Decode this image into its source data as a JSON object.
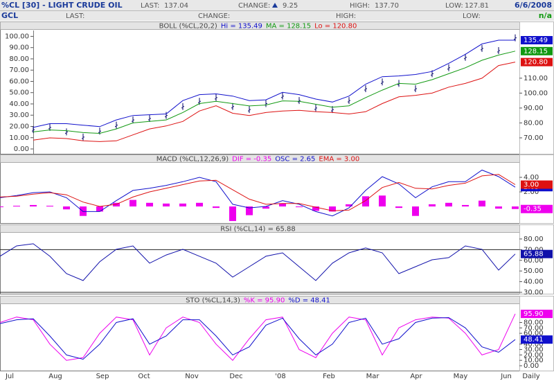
{
  "header": {
    "symbol": "%CL [30] - LIGHT CRUDE OIL",
    "last_label": "LAST:",
    "last": "137.04",
    "change_label": "CHANGE:",
    "change": "9.25",
    "high_label": "HIGH:",
    "high": "137.70",
    "low_label": "LOW:",
    "low": "127.81",
    "date": "6/6/2008",
    "sub_symbol": "GCL",
    "sub_last_label": "LAST:",
    "sub_change_label": "CHANGE:",
    "sub_high_label": "HIGH:",
    "sub_low_label": "LOW:",
    "sub_status": "n/a"
  },
  "x_axis": {
    "labels": [
      "Jul",
      "Aug",
      "Sep",
      "Oct",
      "Nov",
      "Dec",
      "'08",
      "Feb",
      "Mar",
      "Apr",
      "May",
      "Jun",
      "Daily"
    ]
  },
  "chart_data": [
    {
      "type": "line",
      "title": "BOLL (%CL,20,2)",
      "ylim": [
        -4.3,
        105.2
      ],
      "yticks": [
        {
          "value": 0,
          "label": "0.00"
        },
        {
          "value": 10,
          "label": "10.00"
        },
        {
          "value": 20,
          "label": "20.00"
        },
        {
          "value": 30,
          "label": "30.00"
        },
        {
          "value": 40,
          "label": "40.00"
        },
        {
          "value": 50,
          "label": "50.00"
        },
        {
          "value": 60,
          "label": "60.00"
        },
        {
          "value": 70,
          "label": "70.00"
        },
        {
          "value": 80,
          "label": "80.00"
        },
        {
          "value": 90,
          "label": "90.00"
        },
        {
          "value": 100,
          "label": "100.00"
        }
      ],
      "y2lim": [
        59.3,
        142
      ],
      "y2ticks": [
        {
          "value": 70,
          "label": "70.00"
        },
        {
          "value": 80,
          "label": "80.00"
        },
        {
          "value": 90,
          "label": "90.00"
        },
        {
          "value": 100,
          "label": "100.00"
        },
        {
          "value": 110,
          "label": "110.00"
        }
      ],
      "series": [
        {
          "name": "Price",
          "style": "price",
          "axis": "y2",
          "color": "#000066",
          "values": [
            null,
            null,
            75.5,
            77,
            74,
            70.5,
            74.5,
            78.5,
            82,
            83,
            85,
            91,
            94.5,
            97,
            91,
            89,
            93,
            98,
            95,
            90,
            89,
            95,
            103,
            107.5,
            106.5,
            103,
            113,
            117,
            124,
            130,
            128.5,
            137.04
          ]
        },
        {
          "name": "Hi",
          "legend": "Hi = 135.49",
          "last_label": "135.49",
          "style": "line",
          "axis": "y2",
          "color": "#1010cc",
          "values": [
            null,
            null,
            77,
            79.5,
            79.5,
            78.5,
            77.5,
            82,
            85,
            85.5,
            86,
            95,
            99,
            99.5,
            98,
            95,
            95.5,
            100.5,
            99,
            96,
            94,
            98,
            106,
            111,
            111.5,
            112.5,
            114.5,
            120,
            126,
            133,
            135.5,
            135.49
          ]
        },
        {
          "name": "MA",
          "legend": "MA = 128.15",
          "last_label": "128.15",
          "style": "line",
          "axis": "y2",
          "color": "#119911",
          "values": [
            null,
            null,
            74,
            75.3,
            74.8,
            73.5,
            73,
            76,
            80,
            81,
            82,
            87,
            93,
            94.5,
            93,
            91.4,
            92,
            94.8,
            94.5,
            92.5,
            90.5,
            91.5,
            97,
            102,
            106.5,
            106,
            109,
            113,
            117,
            122,
            125.5,
            128.15
          ]
        },
        {
          "name": "Lo",
          "legend": "Lo = 120.80",
          "last_label": "120.80",
          "style": "line",
          "axis": "y2",
          "color": "#dd1111",
          "values": [
            null,
            null,
            68.5,
            70,
            69.5,
            68,
            67.5,
            68,
            72,
            76,
            78,
            81,
            88,
            91.5,
            86.5,
            85,
            87,
            88,
            88.5,
            87.5,
            87,
            86,
            87.5,
            93,
            97.5,
            98.5,
            100,
            104,
            106.5,
            110,
            118.5,
            120.8
          ]
        }
      ]
    },
    {
      "type": "line",
      "title": "MACD (%CL,12,26,9)",
      "ylim": [
        -2.28,
        6.0
      ],
      "yticks": [
        {
          "value": 2,
          "label": "2.00"
        },
        {
          "value": 4,
          "label": "4.00"
        }
      ],
      "series": [
        {
          "name": "DIF",
          "legend": "DIF = -0.35",
          "last_label": "-0.35",
          "style": "bars",
          "color": "#ee00ee",
          "values": [
            -0.1,
            0.1,
            0.2,
            0.1,
            -0.4,
            -1.3,
            -0.7,
            0.5,
            0.9,
            0.5,
            0.4,
            0.4,
            0.5,
            -0.2,
            -2.0,
            -1.2,
            -0.3,
            0.4,
            -0.1,
            -0.6,
            -0.7,
            0.3,
            1.4,
            1.5,
            -0.2,
            -1.3,
            0.3,
            0.5,
            0.2,
            0.8,
            -0.3,
            -0.35
          ]
        },
        {
          "name": "OSC",
          "legend": "OSC = 2.65",
          "last_label": "2.65",
          "style": "line",
          "color": "#1010cc",
          "values": [
            1.2,
            1.5,
            1.9,
            2.0,
            1.2,
            -0.7,
            -0.7,
            0.8,
            2.2,
            2.5,
            2.9,
            3.4,
            4.0,
            3.4,
            0.3,
            -0.2,
            0,
            0.8,
            0.3,
            -0.7,
            -1.3,
            -0.2,
            2.2,
            4.1,
            3.1,
            1.2,
            2.7,
            3.4,
            3.4,
            5.0,
            4.1,
            2.65
          ]
        },
        {
          "name": "EMA",
          "legend": "EMA = 3.00",
          "last_label": "3.00",
          "style": "line",
          "color": "#dd1111",
          "values": [
            1.3,
            1.4,
            1.7,
            1.9,
            1.6,
            0.6,
            0,
            0.3,
            1.3,
            2.0,
            2.5,
            3.0,
            3.5,
            3.6,
            2.3,
            1.0,
            0.3,
            0.4,
            0.4,
            -0.1,
            -0.6,
            -0.5,
            0.8,
            2.6,
            3.3,
            2.5,
            2.4,
            2.9,
            3.2,
            4.2,
            4.4,
            3.0
          ]
        }
      ]
    },
    {
      "type": "line",
      "title": "RSI (%CL,14) = 65.88",
      "ylim": [
        28.7,
        85.8
      ],
      "yticks": [
        {
          "value": 30,
          "label": "30.00"
        },
        {
          "value": 40,
          "label": "40.00"
        },
        {
          "value": 50,
          "label": "50.00"
        },
        {
          "value": 60,
          "label": "60.00"
        },
        {
          "value": 70,
          "label": "70.00"
        },
        {
          "value": 80,
          "label": "80.00"
        }
      ],
      "hlines": [
        70,
        30
      ],
      "series": [
        {
          "name": "RSI",
          "last_label": "65.88",
          "style": "line",
          "color": "#1010aa",
          "values": [
            63.8,
            73.5,
            75.5,
            63.8,
            47.5,
            41,
            58.6,
            70.3,
            73.5,
            57.3,
            65,
            70.3,
            63.8,
            57.3,
            44.3,
            54,
            63.8,
            67,
            54,
            41,
            57.3,
            67,
            71.6,
            67,
            47.5,
            54,
            60.5,
            62.5,
            73.5,
            70.3,
            50.8,
            65.88
          ]
        }
      ]
    },
    {
      "type": "line",
      "title": "STO (%CL,14,3)",
      "ylim": [
        -9,
        114
      ],
      "yticks": [
        {
          "value": 0,
          "label": "0.00"
        },
        {
          "value": 10,
          "label": "10.00"
        },
        {
          "value": 20,
          "label": "20.00"
        },
        {
          "value": 30,
          "label": "30.00"
        },
        {
          "value": 40,
          "label": "40.00"
        },
        {
          "value": 60,
          "label": "60.00"
        },
        {
          "value": 70,
          "label": "70.00"
        },
        {
          "value": 80,
          "label": "80.00"
        }
      ],
      "series": [
        {
          "name": "%K",
          "legend": "%K = 95.90",
          "last_label": "95.90",
          "style": "line",
          "color": "#ee00ee",
          "values": [
            80,
            90,
            85,
            40,
            10,
            15,
            60,
            90,
            85,
            20,
            70,
            90,
            80,
            40,
            10,
            50,
            85,
            90,
            30,
            15,
            60,
            90,
            85,
            20,
            70,
            85,
            90,
            88,
            60,
            20,
            30,
            95.9
          ]
        },
        {
          "name": "%D",
          "legend": "%D = 48.41",
          "last_label": "48.41",
          "style": "line",
          "color": "#1010cc",
          "values": [
            78,
            85,
            87,
            55,
            20,
            12,
            40,
            80,
            87,
            40,
            55,
            85,
            85,
            55,
            20,
            35,
            75,
            88,
            50,
            20,
            40,
            80,
            88,
            40,
            50,
            80,
            88,
            89,
            70,
            35,
            25,
            48.41
          ]
        }
      ]
    }
  ]
}
